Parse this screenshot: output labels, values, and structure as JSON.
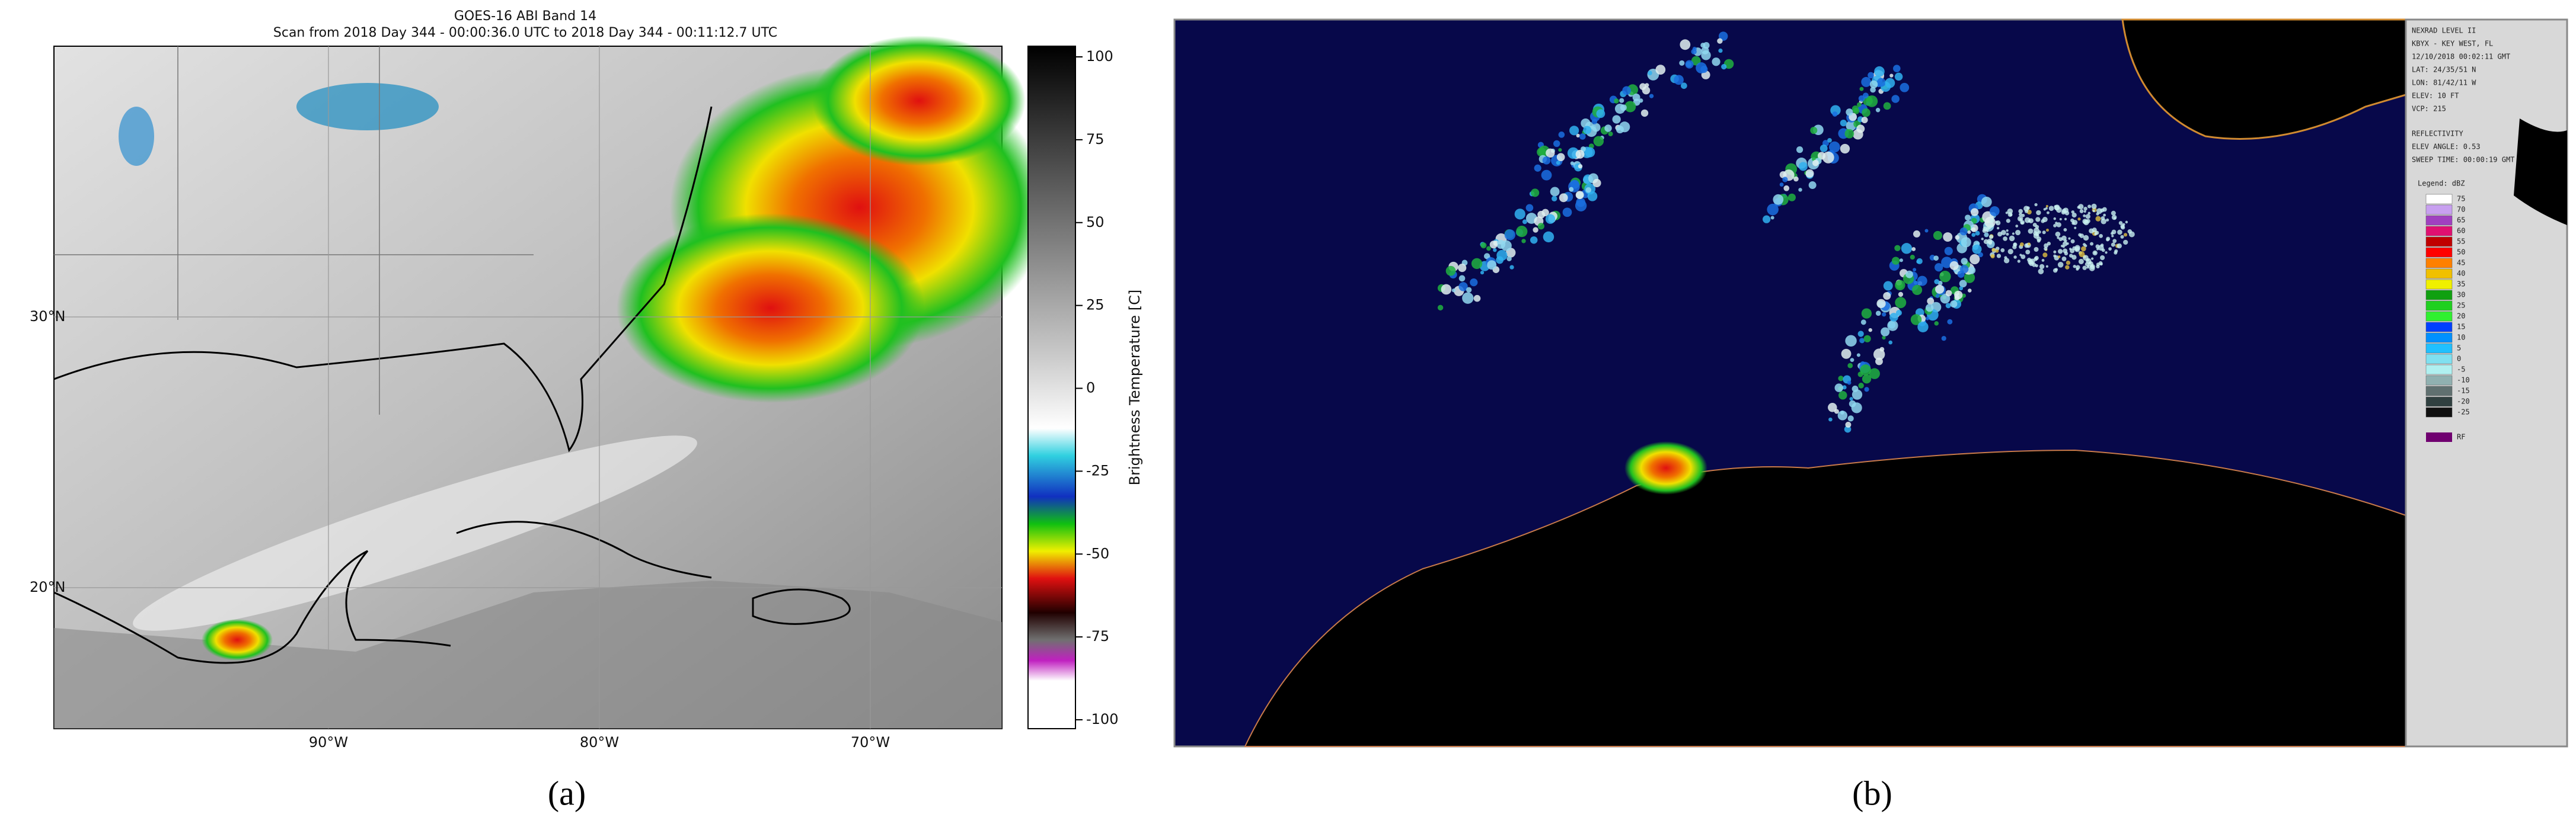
{
  "panel_a": {
    "title": "GOES-16 ABI Band 14",
    "subtitle": "Scan from 2018 Day 344 - 00:00:36.0 UTC to 2018 Day 344 - 00:11:12.7 UTC",
    "colorbar": {
      "label": "Brightness Temperature [C]",
      "ticks": [
        100,
        75,
        50,
        25,
        0,
        -25,
        -50,
        -75,
        -100
      ]
    },
    "lat_labels": [
      "30°N",
      "20°N"
    ],
    "lon_labels": [
      "90°W",
      "80°W",
      "70°W"
    ],
    "caption": "(a)"
  },
  "panel_b": {
    "info_lines": [
      "NEXRAD LEVEL II",
      "KBYX - KEY WEST, FL",
      "12/10/2018 00:02:11 GMT",
      "LAT: 24/35/51 N",
      "LON: 81/42/11 W",
      "ELEV: 10 FT",
      "VCP: 215"
    ],
    "product_lines": [
      "REFLECTIVITY",
      "ELEV ANGLE: 0.53",
      "SWEEP TIME: 00:00:19 GMT"
    ],
    "legend": {
      "title": "Legend: dBZ",
      "values": [
        75,
        70,
        65,
        60,
        55,
        50,
        45,
        40,
        35,
        30,
        25,
        20,
        15,
        10,
        5,
        0,
        -5,
        -10,
        -15,
        -20,
        -25
      ],
      "extra": "RF"
    },
    "caption": "(b)"
  }
}
